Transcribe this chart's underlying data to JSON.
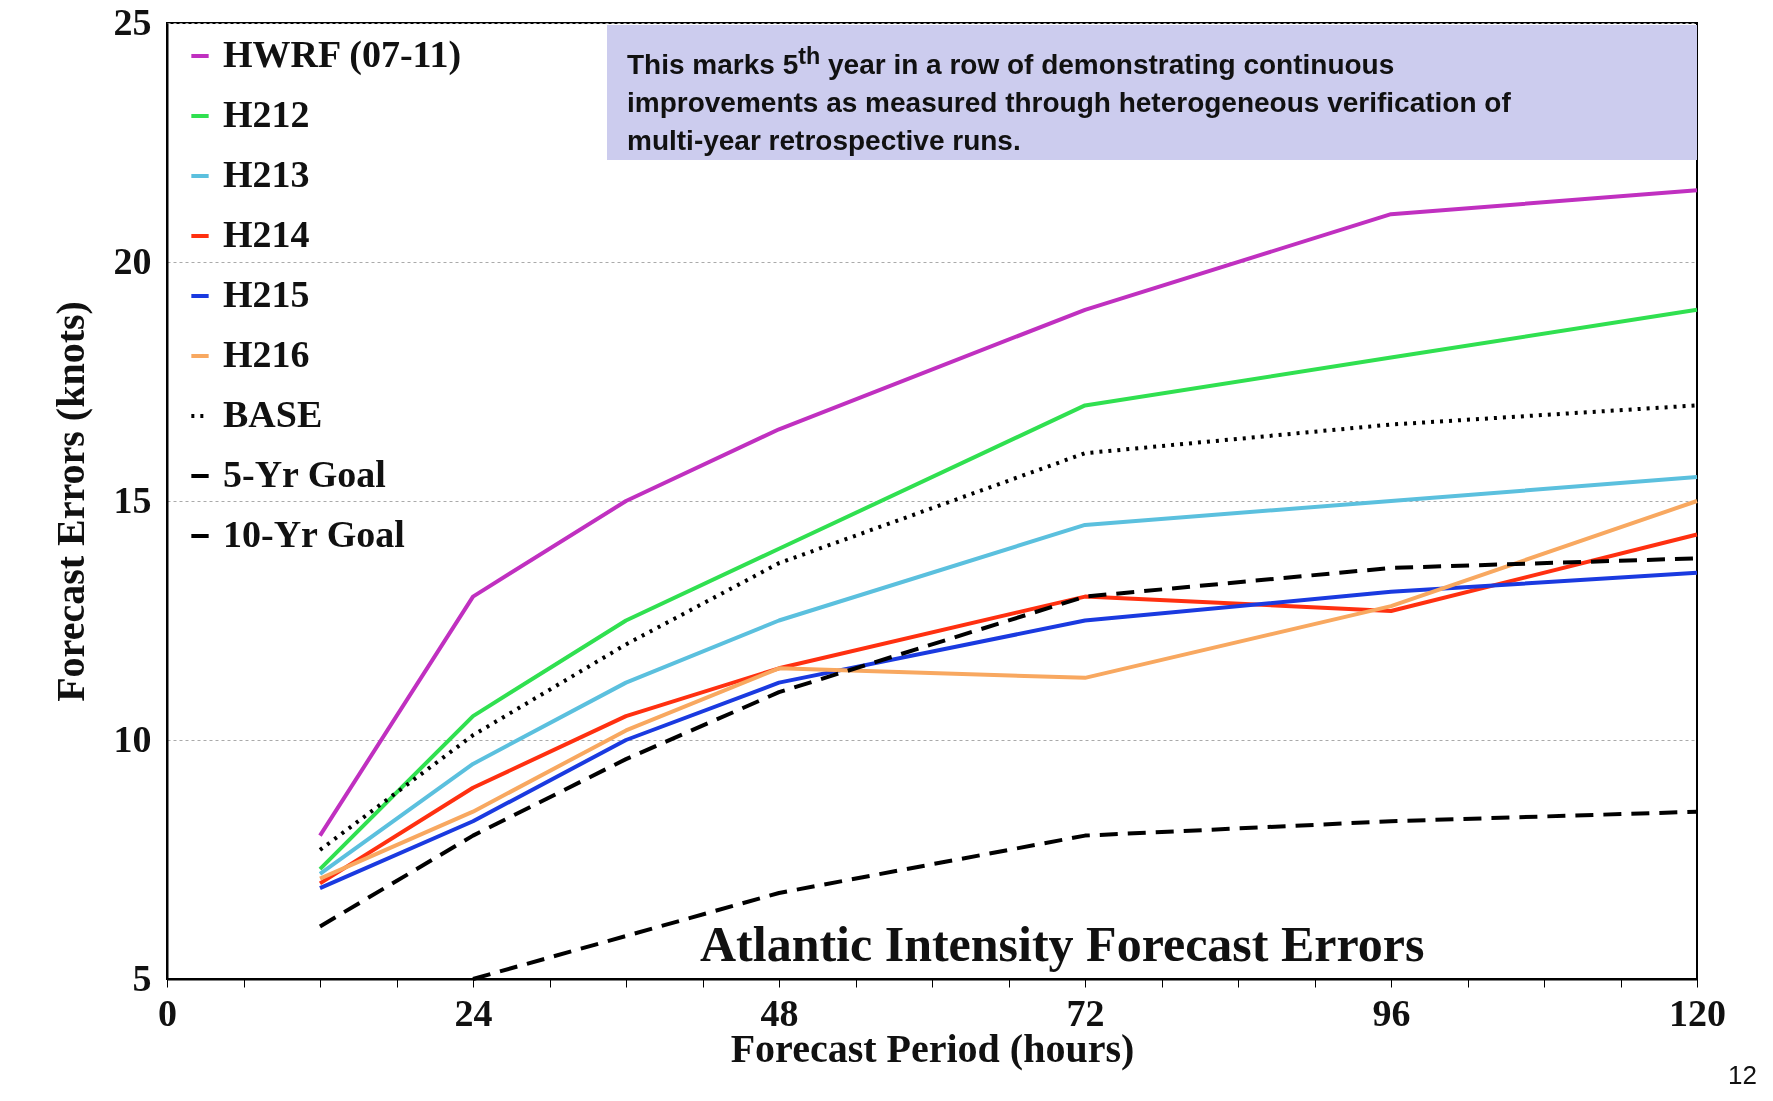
{
  "chart_data": {
    "type": "line",
    "title": "Atlantic Intensity Forecast Errors",
    "xlabel": "Forecast Period (hours)",
    "ylabel": "Forecast Errors (knots)",
    "xlim": [
      0,
      120
    ],
    "ylim": [
      5,
      25
    ],
    "xticks": [
      0,
      {
        "value": 6,
        "label": null
      },
      {
        "value": 12,
        "label": null
      },
      {
        "value": 18,
        "label": null
      },
      24,
      {
        "value": 30,
        "label": null
      },
      {
        "value": 36,
        "label": null
      },
      {
        "value": 42,
        "label": null
      },
      48,
      {
        "value": 54,
        "label": null
      },
      {
        "value": 60,
        "label": null
      },
      {
        "value": 66,
        "label": null
      },
      72,
      {
        "value": 78,
        "label": null
      },
      {
        "value": 84,
        "label": null
      },
      {
        "value": 90,
        "label": null
      },
      96,
      {
        "value": 102,
        "label": null
      },
      {
        "value": 108,
        "label": null
      },
      {
        "value": 114,
        "label": null
      },
      120
    ],
    "yticks": [
      5,
      10,
      15,
      20,
      25
    ],
    "grid": "y",
    "legend": "top left",
    "x": [
      12,
      24,
      36,
      48,
      72,
      96,
      120
    ],
    "series": [
      {
        "name": "HWRF (07-11)",
        "color": "#c030c0",
        "line_style": "solid",
        "values": [
          8,
          13,
          15,
          16.5,
          19,
          21,
          21.5
        ]
      },
      {
        "name": "H212",
        "color": "#30e050",
        "line_style": "solid",
        "values": [
          7.3,
          10.5,
          12.5,
          14,
          17,
          18,
          19
        ]
      },
      {
        "name": "H213",
        "color": "#5bc0de",
        "line_style": "solid",
        "values": [
          7.2,
          9.5,
          11.2,
          12.5,
          14.5,
          15,
          15.5
        ]
      },
      {
        "name": "H214",
        "color": "#ff3010",
        "line_style": "solid",
        "values": [
          7,
          9,
          10.5,
          11.5,
          13,
          12.7,
          14.3
        ]
      },
      {
        "name": "H215",
        "color": "#1a3ae0",
        "line_style": "solid",
        "values": [
          6.9,
          8.3,
          10,
          11.2,
          12.5,
          13.1,
          13.5
        ]
      },
      {
        "name": "H216",
        "color": "#f8a860",
        "line_style": "solid",
        "values": [
          7.1,
          8.5,
          10.2,
          11.5,
          11.3,
          12.8,
          15
        ]
      },
      {
        "name": "BASE",
        "color": "#000000",
        "line_style": "dotted",
        "values": [
          7.7,
          10.1,
          12,
          13.7,
          16,
          16.6,
          17
        ]
      },
      {
        "name": "5-Yr Goal",
        "color": "#000000",
        "line_style": "dashed",
        "values": [
          6.1,
          8,
          9.6,
          11,
          13,
          13.6,
          13.8
        ]
      },
      {
        "name": "10-Yr Goal",
        "color": "#000000",
        "line_style": "dashed",
        "values": [
          null,
          5,
          5.9,
          6.8,
          8,
          8.3,
          8.5
        ]
      }
    ],
    "annotations": [
      "This marks 5$^{th}$ year in a row of demonstrating continuous improvements as measured through heterogeneous verification of multi-year retrospective runs.",
      "12"
    ]
  }
}
